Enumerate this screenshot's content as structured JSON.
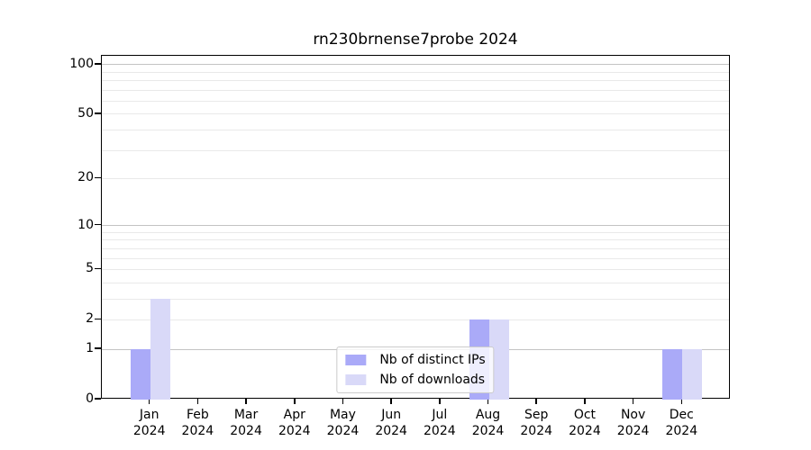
{
  "chart_data": {
    "type": "bar",
    "title": "rn230brnense7probe 2024",
    "year": "2024",
    "categories": [
      "Jan",
      "Feb",
      "Mar",
      "Apr",
      "May",
      "Jun",
      "Jul",
      "Aug",
      "Sep",
      "Oct",
      "Nov",
      "Dec"
    ],
    "series": [
      {
        "name": "Nb of distinct IPs",
        "color": "#aaaaf8",
        "values": [
          1,
          0,
          0,
          0,
          0,
          0,
          0,
          2,
          0,
          0,
          0,
          1
        ]
      },
      {
        "name": "Nb of downloads",
        "color": "#d9d9f8",
        "values": [
          3,
          0,
          0,
          0,
          0,
          0,
          0,
          2,
          0,
          0,
          0,
          1
        ]
      }
    ],
    "y_scale": "log1p",
    "y_max": 113,
    "y_ticks": [
      0,
      1,
      2,
      5,
      10,
      20,
      50,
      100
    ],
    "major_gridlines": [
      1,
      10,
      100
    ],
    "minor_gridlines": [
      2,
      3,
      4,
      5,
      6,
      7,
      8,
      9,
      20,
      30,
      40,
      50,
      60,
      70,
      80,
      90
    ],
    "legend_position": "lower center",
    "colors": {
      "major_grid": "#c3c3c3",
      "minor_grid": "#e9e9e9",
      "spine": "#000000",
      "background": "#ffffff"
    }
  }
}
